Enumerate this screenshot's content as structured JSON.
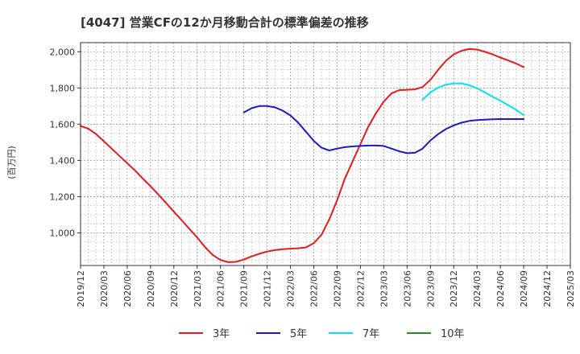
{
  "chart_data": {
    "type": "line",
    "title": "[4047]  営業CFの12か月移動合計の標準偏差の推移",
    "ylabel": "(百万円)",
    "xlabel": "",
    "ylim": [
      820,
      2050
    ],
    "yticks": [
      1000,
      1200,
      1400,
      1600,
      1800,
      2000
    ],
    "ytick_labels": [
      "1,000",
      "1,200",
      "1,400",
      "1,600",
      "1,800",
      "2,000"
    ],
    "x_ticks": [
      "2019/12",
      "2020/03",
      "2020/06",
      "2020/09",
      "2020/12",
      "2021/03",
      "2021/06",
      "2021/09",
      "2021/12",
      "2022/03",
      "2022/06",
      "2022/09",
      "2022/12",
      "2023/03",
      "2023/06",
      "2023/09",
      "2023/12",
      "2024/03",
      "2024/06",
      "2024/09",
      "2024/12",
      "2025/03"
    ],
    "grid": true,
    "legend_position": "bottom",
    "series": [
      {
        "name": "3年",
        "color": "#e41a1c",
        "x": [
          "2019/12",
          "2020/01",
          "2020/02",
          "2020/03",
          "2020/04",
          "2020/05",
          "2020/06",
          "2020/07",
          "2020/08",
          "2020/09",
          "2020/10",
          "2020/11",
          "2020/12",
          "2021/01",
          "2021/02",
          "2021/03",
          "2021/04",
          "2021/05",
          "2021/06",
          "2021/07",
          "2021/08",
          "2021/09",
          "2021/10",
          "2021/11",
          "2021/12",
          "2022/01",
          "2022/02",
          "2022/03",
          "2022/04",
          "2022/05",
          "2022/06",
          "2022/07",
          "2022/08",
          "2022/09",
          "2022/10",
          "2022/11",
          "2022/12",
          "2023/01",
          "2023/02",
          "2023/03",
          "2023/04",
          "2023/05",
          "2023/06",
          "2023/07",
          "2023/08",
          "2023/09",
          "2023/10",
          "2023/11",
          "2023/12",
          "2024/01",
          "2024/02",
          "2024/03",
          "2024/04",
          "2024/05",
          "2024/06",
          "2024/07",
          "2024/08",
          "2024/09"
        ],
        "values": [
          1590,
          1575,
          1545,
          1505,
          1465,
          1425,
          1385,
          1345,
          1300,
          1258,
          1212,
          1165,
          1117,
          1070,
          1022,
          975,
          922,
          878,
          850,
          838,
          840,
          853,
          870,
          885,
          897,
          905,
          910,
          913,
          915,
          920,
          943,
          990,
          1075,
          1180,
          1300,
          1395,
          1490,
          1585,
          1660,
          1725,
          1770,
          1788,
          1790,
          1792,
          1805,
          1845,
          1900,
          1950,
          1985,
          2005,
          2015,
          2012,
          2000,
          1985,
          1968,
          1952,
          1935,
          1915
        ]
      },
      {
        "name": "5年",
        "color": "#1a1ac8",
        "x": [
          "2021/09",
          "2021/10",
          "2021/11",
          "2021/12",
          "2022/01",
          "2022/02",
          "2022/03",
          "2022/04",
          "2022/05",
          "2022/06",
          "2022/07",
          "2022/08",
          "2022/09",
          "2022/10",
          "2022/11",
          "2022/12",
          "2023/01",
          "2023/02",
          "2023/03",
          "2023/04",
          "2023/05",
          "2023/06",
          "2023/07",
          "2023/08",
          "2023/09",
          "2023/10",
          "2023/11",
          "2023/12",
          "2024/01",
          "2024/02",
          "2024/03",
          "2024/04",
          "2024/05",
          "2024/06",
          "2024/07",
          "2024/08",
          "2024/09"
        ],
        "values": [
          1665,
          1688,
          1700,
          1700,
          1693,
          1675,
          1648,
          1608,
          1558,
          1508,
          1470,
          1455,
          1465,
          1473,
          1477,
          1480,
          1482,
          1482,
          1480,
          1465,
          1450,
          1440,
          1442,
          1465,
          1510,
          1545,
          1573,
          1593,
          1608,
          1618,
          1623,
          1625,
          1627,
          1628,
          1628,
          1628,
          1628
        ]
      },
      {
        "name": "7年",
        "color": "#00e5ee",
        "x": [
          "2023/08",
          "2023/09",
          "2023/10",
          "2023/11",
          "2023/12",
          "2024/01",
          "2024/02",
          "2024/03",
          "2024/04",
          "2024/05",
          "2024/06",
          "2024/07",
          "2024/08",
          "2024/09"
        ],
        "values": [
          1735,
          1775,
          1802,
          1818,
          1825,
          1825,
          1815,
          1798,
          1775,
          1752,
          1730,
          1705,
          1680,
          1650
        ]
      },
      {
        "name": "10年",
        "color": "#228b22",
        "x": [],
        "values": []
      }
    ]
  }
}
